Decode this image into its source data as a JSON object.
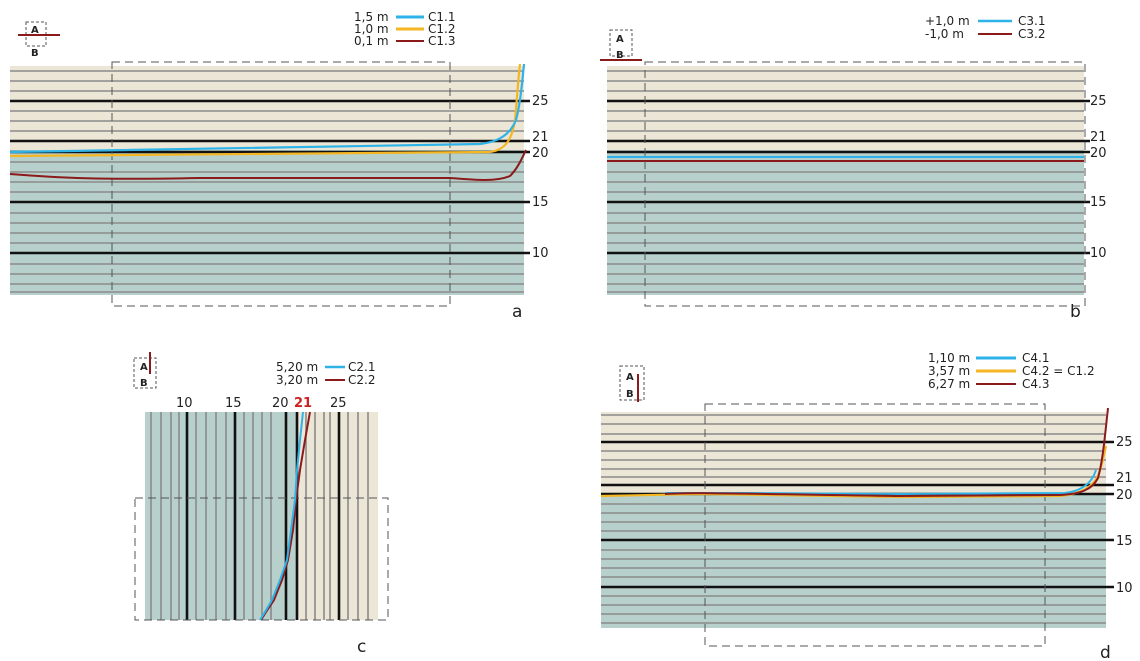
{
  "colors": {
    "upper_band": "#ece6d6",
    "lower_band": "#b8d0cb",
    "thin_line": "#8a8a8a",
    "thick_line": "#111111",
    "blue": "#2eb3e8",
    "yellow": "#f4b623",
    "red": "#8b1a1a",
    "red_label": "#cc2222"
  },
  "ab_icon": {
    "a": "A",
    "b": "B"
  },
  "panels": {
    "a": {
      "tag": "a",
      "ticks": [
        "25",
        "21",
        "20",
        "15",
        "10"
      ],
      "legend": [
        {
          "value": "1,5 m",
          "id": "C1.1",
          "color": "blue"
        },
        {
          "value": "1,0 m",
          "id": "C1.2",
          "color": "yellow"
        },
        {
          "value": "0,1 m",
          "id": "C1.3",
          "color": "red"
        }
      ]
    },
    "b": {
      "tag": "b",
      "ticks": [
        "25",
        "21",
        "20",
        "15",
        "10"
      ],
      "legend": [
        {
          "value": "+1,0 m",
          "id": "C3.1",
          "color": "blue"
        },
        {
          "value": "-1,0 m",
          "id": "C3.2",
          "color": "red"
        }
      ]
    },
    "c": {
      "tag": "c",
      "ticks": [
        "10",
        "15",
        "20",
        "21",
        "25"
      ],
      "highlight_tick": "21",
      "legend": [
        {
          "value": "5,20 m",
          "id": "C2.1",
          "color": "blue"
        },
        {
          "value": "3,20 m",
          "id": "C2.2",
          "color": "red"
        }
      ]
    },
    "d": {
      "tag": "d",
      "ticks": [
        "25",
        "21",
        "20",
        "15",
        "10"
      ],
      "legend": [
        {
          "value": "1,10 m",
          "id": "C4.1",
          "color": "blue"
        },
        {
          "value": "3,57 m",
          "id": "C4.2 = C1.2",
          "color": "yellow"
        },
        {
          "value": "6,27 m",
          "id": "C4.3",
          "color": "red"
        }
      ]
    }
  }
}
